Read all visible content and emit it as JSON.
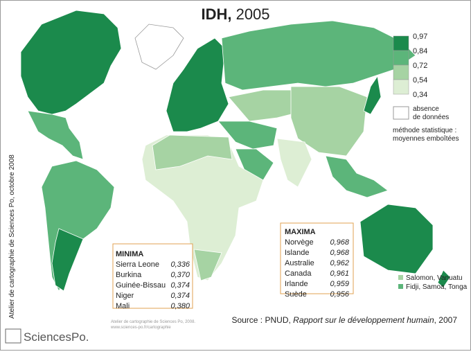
{
  "title": {
    "bold": "IDH,",
    "year": "2005"
  },
  "legend": {
    "breaks": [
      "0,97",
      "0,84",
      "0,72",
      "0,54",
      "0,34"
    ],
    "colors": [
      "#1b8a4c",
      "#5cb57a",
      "#a6d3a3",
      "#ddeed4"
    ]
  },
  "no_data": [
    "absence",
    "de données"
  ],
  "method": [
    "méthode statistique :",
    "moyennes emboîtées"
  ],
  "minima": {
    "title": "MINIMA",
    "rows": [
      [
        "Sierra Leone",
        "0,336"
      ],
      [
        "Burkina",
        "0,370"
      ],
      [
        "Guinée-Bissau",
        "0,374"
      ],
      [
        "Niger",
        "0,374"
      ],
      [
        "Mali",
        "0,380"
      ]
    ]
  },
  "maxima": {
    "title": "MAXIMA",
    "rows": [
      [
        "Norvège",
        "0,968"
      ],
      [
        "Islande",
        "0,968"
      ],
      [
        "Australie",
        "0,962"
      ],
      [
        "Canada",
        "0,961"
      ],
      [
        "Irlande",
        "0,959"
      ],
      [
        "Suède",
        "0,956"
      ]
    ]
  },
  "islands": [
    "Salomon, Vanuatu",
    "Fidji, Samoa, Tonga"
  ],
  "source": {
    "prefix": "Source : PNUD, ",
    "italic": "Rapport sur le développement humain",
    "suffix": ", 2007"
  },
  "credit": "Atelier de cartographie de Sciences Po, octobre 2008",
  "footer": [
    "Atelier de cartographie de Sciences Po, 2008.",
    "www.sciences-po.fr/cartographie"
  ],
  "logo": "SciencesPo."
}
